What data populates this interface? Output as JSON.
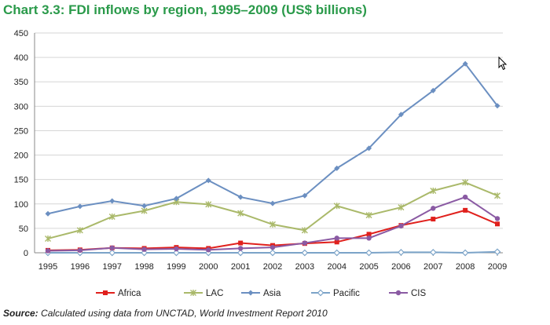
{
  "title": "Chart 3.3: FDI inflows by region, 1995–2009 (US$ billions)",
  "source": {
    "label": "Source:",
    "text": "Calculated using data from UNCTAD, World Investment Report 2010"
  },
  "chart_data": {
    "type": "line",
    "title": "Chart 3.3: FDI inflows by region, 1995–2009 (US$ billions)",
    "xlabel": "",
    "ylabel": "",
    "ylim": [
      0,
      450
    ],
    "yticks": [
      0,
      50,
      100,
      150,
      200,
      250,
      300,
      350,
      400,
      450
    ],
    "grid": true,
    "legend": "bottom",
    "categories": [
      "1995",
      "1996",
      "1997",
      "1998",
      "1999",
      "2000",
      "2001",
      "2002",
      "2003",
      "2004",
      "2005",
      "2006",
      "2007",
      "2008",
      "2009"
    ],
    "series": [
      {
        "name": "Africa",
        "color": "#e0201c",
        "marker": "square",
        "values": [
          5,
          6,
          10,
          9,
          11,
          9,
          20,
          15,
          19,
          22,
          38,
          56,
          69,
          87,
          59
        ]
      },
      {
        "name": "LAC",
        "color": "#aab96a",
        "marker": "star",
        "values": [
          29,
          46,
          74,
          86,
          104,
          99,
          81,
          58,
          46,
          96,
          77,
          93,
          127,
          144,
          117
        ]
      },
      {
        "name": "Asia",
        "color": "#6b8fc1",
        "marker": "diamond",
        "values": [
          80,
          95,
          106,
          96,
          111,
          148,
          114,
          101,
          117,
          173,
          214,
          283,
          332,
          387,
          301
        ]
      },
      {
        "name": "Pacific",
        "color": "#7ba3c8",
        "marker": "open-diamond",
        "values": [
          0,
          0,
          0,
          0,
          0,
          0,
          0,
          0,
          0,
          0,
          0,
          1,
          1,
          0,
          2
        ]
      },
      {
        "name": "CIS",
        "color": "#8a5aa3",
        "marker": "circle",
        "values": [
          4,
          5,
          10,
          7,
          8,
          6,
          9,
          11,
          20,
          30,
          30,
          55,
          91,
          114,
          70
        ]
      }
    ]
  }
}
